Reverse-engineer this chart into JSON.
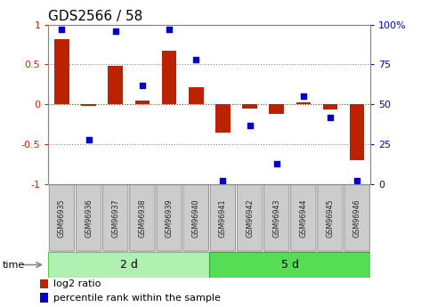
{
  "title": "GDS2566 / 58",
  "samples": [
    "GSM96935",
    "GSM96936",
    "GSM96937",
    "GSM96938",
    "GSM96939",
    "GSM96940",
    "GSM96941",
    "GSM96942",
    "GSM96943",
    "GSM96944",
    "GSM96945",
    "GSM96946"
  ],
  "log2_ratio": [
    0.82,
    -0.02,
    0.48,
    0.05,
    0.67,
    0.22,
    -0.35,
    -0.05,
    -0.12,
    0.03,
    -0.06,
    -0.7
  ],
  "percentile_rank": [
    97,
    28,
    96,
    62,
    97,
    78,
    2,
    37,
    13,
    55,
    42,
    2
  ],
  "groups": [
    {
      "label": "2 d",
      "start": 0,
      "end": 5,
      "color": "#B0F0B0",
      "color_dark": "#55CC55"
    },
    {
      "label": "5 d",
      "start": 6,
      "end": 11,
      "color": "#55DD55",
      "color_dark": "#33AA33"
    }
  ],
  "bar_color": "#BB2200",
  "dot_color": "#0000CC",
  "bar_width": 0.55,
  "ylim_left": [
    -1,
    1
  ],
  "ylim_right": [
    0,
    100
  ],
  "yticks_left": [
    -1,
    -0.5,
    0,
    0.5,
    1
  ],
  "yticks_right": [
    0,
    25,
    50,
    75,
    100
  ],
  "yticklabels_left": [
    "-1",
    "-0.5",
    "0",
    "0.5",
    "1"
  ],
  "yticklabels_right": [
    "0",
    "25",
    "50",
    "75",
    "100%"
  ],
  "hlines_dotted": [
    0.5,
    -0.5
  ],
  "hline0_color": "#CC2200",
  "legend_items": [
    {
      "label": "log2 ratio",
      "color": "#BB2200"
    },
    {
      "label": "percentile rank within the sample",
      "color": "#0000CC"
    }
  ],
  "time_label": "time",
  "bg_color": "#ffffff",
  "plot_bg_color": "#ffffff",
  "tick_label_color_left": "#CC2200",
  "tick_label_color_right": "#0000CC",
  "title_fontsize": 11,
  "axis_fontsize": 8,
  "legend_fontsize": 8,
  "sample_box_color": "#CCCCCC",
  "sample_box_edge": "#888888"
}
